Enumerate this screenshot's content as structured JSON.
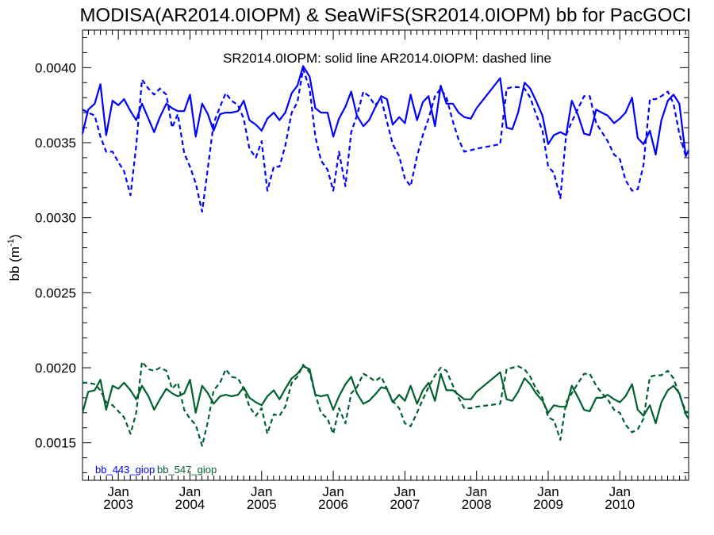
{
  "chart_data": {
    "type": "line",
    "title": "MODISA(AR2014.0IOPM) & SeaWiFS(SR2014.0IOPM)  bb for PacGOCI",
    "annotation": "SR2014.0IOPM: solid line   AR2014.0IOPM: dashed line",
    "ylabel": "bb (m",
    "ylabel_sup": "-1",
    "ylabel_close": ")",
    "ylim": [
      0.00125,
      0.00425
    ],
    "xlim": [
      2002.5,
      2010.96
    ],
    "yticks": [
      {
        "value": 0.0015,
        "label": "0.0015"
      },
      {
        "value": 0.002,
        "label": "0.0020"
      },
      {
        "value": 0.0025,
        "label": "0.0025"
      },
      {
        "value": 0.003,
        "label": "0.0030"
      },
      {
        "value": 0.0035,
        "label": "0.0035"
      },
      {
        "value": 0.004,
        "label": "0.0040"
      }
    ],
    "xticks": [
      {
        "value": 2003.0,
        "month": "Jan",
        "year": "2003"
      },
      {
        "value": 2004.0,
        "month": "Jan",
        "year": "2004"
      },
      {
        "value": 2005.0,
        "month": "Jan",
        "year": "2005"
      },
      {
        "value": 2006.0,
        "month": "Jan",
        "year": "2006"
      },
      {
        "value": 2007.0,
        "month": "Jan",
        "year": "2007"
      },
      {
        "value": 2008.0,
        "month": "Jan",
        "year": "2008"
      },
      {
        "value": 2009.0,
        "month": "Jan",
        "year": "2009"
      },
      {
        "value": 2010.0,
        "month": "Jan",
        "year": "2010"
      }
    ],
    "legend": [
      {
        "label": "bb_443_giop",
        "color": "#0000ff"
      },
      {
        "label": "bb_547_giop",
        "color": "#006030"
      }
    ],
    "series": [
      {
        "name": "bb_443_giop",
        "variant": "SR2014.0IOPM",
        "style": "solid",
        "color": "#0000ff",
        "x": [
          2002.5,
          2002.58,
          2002.67,
          2002.75,
          2002.83,
          2002.92,
          2003.0,
          2003.08,
          2003.17,
          2003.25,
          2003.33,
          2003.42,
          2003.5,
          2003.58,
          2003.67,
          2003.75,
          2003.83,
          2003.92,
          2004.0,
          2004.08,
          2004.17,
          2004.25,
          2004.33,
          2004.42,
          2004.5,
          2004.58,
          2004.67,
          2004.75,
          2004.83,
          2004.92,
          2005.0,
          2005.08,
          2005.17,
          2005.25,
          2005.33,
          2005.42,
          2005.5,
          2005.58,
          2005.67,
          2005.75,
          2005.83,
          2005.92,
          2006.0,
          2006.08,
          2006.17,
          2006.25,
          2006.33,
          2006.42,
          2006.5,
          2006.58,
          2006.67,
          2006.75,
          2006.83,
          2006.92,
          2007.0,
          2007.08,
          2007.17,
          2007.25,
          2007.33,
          2007.42,
          2007.5,
          2007.58,
          2007.67,
          2007.75,
          2007.83,
          2007.92,
          2008.0,
          2008.33,
          2008.42,
          2008.5,
          2008.58,
          2008.67,
          2008.75,
          2008.83,
          2008.92,
          2009.0,
          2009.08,
          2009.17,
          2009.25,
          2009.33,
          2009.42,
          2009.5,
          2009.58,
          2009.67,
          2009.75,
          2009.83,
          2009.92,
          2010.0,
          2010.08,
          2010.17,
          2010.25,
          2010.33,
          2010.42,
          2010.5,
          2010.58,
          2010.67,
          2010.75,
          2010.83,
          2010.92,
          2010.96
        ],
        "y": [
          0.00356,
          0.00372,
          0.00376,
          0.00389,
          0.00355,
          0.00378,
          0.00375,
          0.00379,
          0.00371,
          0.00365,
          0.00376,
          0.00366,
          0.00357,
          0.00367,
          0.00376,
          0.00373,
          0.00371,
          0.00371,
          0.00382,
          0.00354,
          0.00376,
          0.00369,
          0.00358,
          0.00369,
          0.0037,
          0.0037,
          0.00371,
          0.00378,
          0.00365,
          0.00362,
          0.00358,
          0.00366,
          0.0037,
          0.00365,
          0.0037,
          0.00383,
          0.00388,
          0.00401,
          0.00394,
          0.00373,
          0.0037,
          0.0037,
          0.00354,
          0.00366,
          0.00374,
          0.00384,
          0.00368,
          0.00361,
          0.00365,
          0.00373,
          0.00381,
          0.00379,
          0.00362,
          0.00367,
          0.00363,
          0.00382,
          0.00365,
          0.00377,
          0.00381,
          0.00361,
          0.00388,
          0.00376,
          0.00376,
          0.0037,
          0.00367,
          0.00366,
          0.00373,
          0.00393,
          0.0036,
          0.00359,
          0.0037,
          0.0039,
          0.00386,
          0.00378,
          0.00368,
          0.00349,
          0.00355,
          0.00357,
          0.00355,
          0.00378,
          0.00368,
          0.00356,
          0.00355,
          0.00372,
          0.0037,
          0.00368,
          0.00363,
          0.00366,
          0.0037,
          0.0038,
          0.00353,
          0.00349,
          0.00358,
          0.00342,
          0.00365,
          0.00378,
          0.00382,
          0.00376,
          0.00341,
          0.00345
        ]
      },
      {
        "name": "bb_443_giop",
        "variant": "AR2014.0IOPM",
        "style": "dashed",
        "color": "#0000ff",
        "x": [
          2002.5,
          2002.58,
          2002.67,
          2002.75,
          2002.83,
          2002.92,
          2003.0,
          2003.08,
          2003.17,
          2003.25,
          2003.33,
          2003.42,
          2003.5,
          2003.58,
          2003.67,
          2003.75,
          2003.83,
          2003.92,
          2004.0,
          2004.08,
          2004.17,
          2004.25,
          2004.33,
          2004.42,
          2004.5,
          2004.58,
          2004.67,
          2004.75,
          2004.83,
          2004.92,
          2005.0,
          2005.08,
          2005.17,
          2005.25,
          2005.33,
          2005.42,
          2005.5,
          2005.58,
          2005.67,
          2005.75,
          2005.83,
          2005.92,
          2006.0,
          2006.08,
          2006.17,
          2006.25,
          2006.33,
          2006.42,
          2006.5,
          2006.58,
          2006.67,
          2006.75,
          2006.83,
          2006.92,
          2007.0,
          2007.08,
          2007.17,
          2007.25,
          2007.33,
          2007.42,
          2007.5,
          2007.58,
          2007.67,
          2007.75,
          2007.83,
          2007.92,
          2008.0,
          2008.33,
          2008.42,
          2008.5,
          2008.58,
          2008.67,
          2008.75,
          2008.83,
          2008.92,
          2009.0,
          2009.08,
          2009.17,
          2009.25,
          2009.33,
          2009.42,
          2009.5,
          2009.58,
          2009.67,
          2009.75,
          2009.83,
          2009.92,
          2010.0,
          2010.08,
          2010.17,
          2010.25,
          2010.33,
          2010.42,
          2010.5,
          2010.58,
          2010.67,
          2010.75,
          2010.83,
          2010.92,
          2010.96
        ],
        "y": [
          0.00372,
          0.0037,
          0.00368,
          0.00354,
          0.00344,
          0.00344,
          0.00337,
          0.00331,
          0.00315,
          0.00348,
          0.00392,
          0.00386,
          0.00382,
          0.00386,
          0.00382,
          0.0036,
          0.00369,
          0.00343,
          0.00334,
          0.00323,
          0.00304,
          0.00333,
          0.00363,
          0.00374,
          0.00383,
          0.00378,
          0.00375,
          0.00366,
          0.00346,
          0.0034,
          0.00351,
          0.00318,
          0.00334,
          0.00334,
          0.00348,
          0.0037,
          0.00377,
          0.00399,
          0.00386,
          0.00354,
          0.00338,
          0.00332,
          0.00318,
          0.00344,
          0.00321,
          0.00357,
          0.00368,
          0.00384,
          0.00381,
          0.00375,
          0.00379,
          0.00364,
          0.00349,
          0.00341,
          0.00326,
          0.00321,
          0.00341,
          0.00355,
          0.00366,
          0.00381,
          0.00386,
          0.0038,
          0.00364,
          0.00352,
          0.00344,
          0.00345,
          0.00346,
          0.00349,
          0.00386,
          0.00387,
          0.00387,
          0.00386,
          0.0038,
          0.00369,
          0.00358,
          0.00334,
          0.0033,
          0.00313,
          0.00355,
          0.00364,
          0.00373,
          0.00381,
          0.00381,
          0.00363,
          0.00357,
          0.00351,
          0.00342,
          0.00339,
          0.00325,
          0.00318,
          0.00319,
          0.00335,
          0.00379,
          0.00379,
          0.00381,
          0.00384,
          0.00376,
          0.00356,
          0.00341,
          0.0034
        ]
      },
      {
        "name": "bb_547_giop",
        "variant": "SR2014.0IOPM",
        "style": "solid",
        "color": "#006030",
        "x": [
          2002.5,
          2002.58,
          2002.67,
          2002.75,
          2002.83,
          2002.92,
          2003.0,
          2003.08,
          2003.17,
          2003.25,
          2003.33,
          2003.42,
          2003.5,
          2003.58,
          2003.67,
          2003.75,
          2003.83,
          2003.92,
          2004.0,
          2004.08,
          2004.17,
          2004.25,
          2004.33,
          2004.42,
          2004.5,
          2004.58,
          2004.67,
          2004.75,
          2004.83,
          2004.92,
          2005.0,
          2005.08,
          2005.17,
          2005.25,
          2005.33,
          2005.42,
          2005.5,
          2005.58,
          2005.67,
          2005.75,
          2005.83,
          2005.92,
          2006.0,
          2006.08,
          2006.17,
          2006.25,
          2006.33,
          2006.42,
          2006.5,
          2006.58,
          2006.67,
          2006.75,
          2006.83,
          2006.92,
          2007.0,
          2007.08,
          2007.17,
          2007.25,
          2007.33,
          2007.42,
          2007.5,
          2007.58,
          2007.67,
          2007.75,
          2007.83,
          2007.92,
          2008.0,
          2008.33,
          2008.42,
          2008.5,
          2008.58,
          2008.67,
          2008.75,
          2008.83,
          2008.92,
          2009.0,
          2009.08,
          2009.17,
          2009.25,
          2009.33,
          2009.42,
          2009.5,
          2009.58,
          2009.67,
          2009.75,
          2009.83,
          2009.92,
          2010.0,
          2010.08,
          2010.17,
          2010.25,
          2010.33,
          2010.42,
          2010.5,
          2010.58,
          2010.67,
          2010.75,
          2010.83,
          2010.92,
          2010.96
        ],
        "y": [
          0.0017,
          0.00184,
          0.00185,
          0.00192,
          0.00172,
          0.00188,
          0.00186,
          0.0019,
          0.00185,
          0.00179,
          0.00188,
          0.00181,
          0.00172,
          0.00179,
          0.00186,
          0.00183,
          0.00181,
          0.00183,
          0.00192,
          0.0017,
          0.00188,
          0.00183,
          0.00176,
          0.00181,
          0.00182,
          0.00181,
          0.00182,
          0.00187,
          0.0018,
          0.00177,
          0.00175,
          0.00181,
          0.00185,
          0.00179,
          0.00186,
          0.00193,
          0.00196,
          0.00201,
          0.00199,
          0.00182,
          0.00181,
          0.00182,
          0.00172,
          0.00181,
          0.00189,
          0.00194,
          0.00183,
          0.00176,
          0.00178,
          0.00182,
          0.00187,
          0.00186,
          0.00177,
          0.00182,
          0.00178,
          0.00188,
          0.00176,
          0.00185,
          0.0019,
          0.00178,
          0.00196,
          0.00185,
          0.00185,
          0.00182,
          0.00179,
          0.00179,
          0.00184,
          0.00197,
          0.00179,
          0.00178,
          0.00184,
          0.00193,
          0.00189,
          0.00183,
          0.00178,
          0.0017,
          0.00175,
          0.00174,
          0.00174,
          0.00188,
          0.0018,
          0.00172,
          0.00171,
          0.0018,
          0.0018,
          0.00182,
          0.00179,
          0.00177,
          0.00181,
          0.00189,
          0.00172,
          0.00168,
          0.00175,
          0.00163,
          0.00177,
          0.00185,
          0.00188,
          0.00183,
          0.00169,
          0.00166
        ]
      },
      {
        "name": "bb_547_giop",
        "variant": "AR2014.0IOPM",
        "style": "dashed",
        "color": "#006030",
        "x": [
          2002.5,
          2002.58,
          2002.67,
          2002.75,
          2002.83,
          2002.92,
          2003.0,
          2003.08,
          2003.17,
          2003.25,
          2003.33,
          2003.42,
          2003.5,
          2003.58,
          2003.67,
          2003.75,
          2003.83,
          2003.92,
          2004.0,
          2004.08,
          2004.17,
          2004.25,
          2004.33,
          2004.42,
          2004.5,
          2004.58,
          2004.67,
          2004.75,
          2004.83,
          2004.92,
          2005.0,
          2005.08,
          2005.17,
          2005.25,
          2005.33,
          2005.42,
          2005.5,
          2005.58,
          2005.67,
          2005.75,
          2005.83,
          2005.92,
          2006.0,
          2006.08,
          2006.17,
          2006.25,
          2006.33,
          2006.42,
          2006.5,
          2006.58,
          2006.67,
          2006.75,
          2006.83,
          2006.92,
          2007.0,
          2007.08,
          2007.17,
          2007.25,
          2007.33,
          2007.42,
          2007.5,
          2007.58,
          2007.67,
          2007.75,
          2007.83,
          2007.92,
          2008.0,
          2008.33,
          2008.42,
          2008.5,
          2008.58,
          2008.67,
          2008.75,
          2008.83,
          2008.92,
          2009.0,
          2009.08,
          2009.17,
          2009.25,
          2009.33,
          2009.42,
          2009.5,
          2009.58,
          2009.67,
          2009.75,
          2009.83,
          2009.92,
          2010.0,
          2010.08,
          2010.17,
          2010.25,
          2010.33,
          2010.42,
          2010.5,
          2010.58,
          2010.67,
          2010.75,
          2010.83,
          2010.92,
          2010.96
        ],
        "y": [
          0.0019,
          0.0019,
          0.00189,
          0.00185,
          0.00177,
          0.00175,
          0.00171,
          0.00167,
          0.00156,
          0.0017,
          0.00204,
          0.00199,
          0.00198,
          0.002,
          0.00198,
          0.00186,
          0.0019,
          0.00172,
          0.00166,
          0.00162,
          0.00148,
          0.00164,
          0.00185,
          0.0019,
          0.00199,
          0.00194,
          0.00193,
          0.00186,
          0.00174,
          0.00168,
          0.00173,
          0.00156,
          0.00169,
          0.00168,
          0.00174,
          0.0019,
          0.00194,
          0.00202,
          0.00197,
          0.00182,
          0.0017,
          0.00166,
          0.00156,
          0.00173,
          0.00163,
          0.00183,
          0.00187,
          0.00196,
          0.00194,
          0.00191,
          0.00194,
          0.00186,
          0.00178,
          0.00173,
          0.00163,
          0.00161,
          0.0017,
          0.00179,
          0.00187,
          0.00195,
          0.002,
          0.00198,
          0.00188,
          0.0018,
          0.00173,
          0.00173,
          0.00174,
          0.00176,
          0.00199,
          0.002,
          0.00201,
          0.00199,
          0.00194,
          0.00186,
          0.0018,
          0.00167,
          0.00165,
          0.00152,
          0.00177,
          0.00183,
          0.0019,
          0.00196,
          0.00196,
          0.00188,
          0.00183,
          0.00179,
          0.00172,
          0.0017,
          0.00162,
          0.00157,
          0.00159,
          0.00166,
          0.00194,
          0.00195,
          0.00195,
          0.00198,
          0.00193,
          0.00182,
          0.00171,
          0.0017
        ]
      }
    ]
  }
}
